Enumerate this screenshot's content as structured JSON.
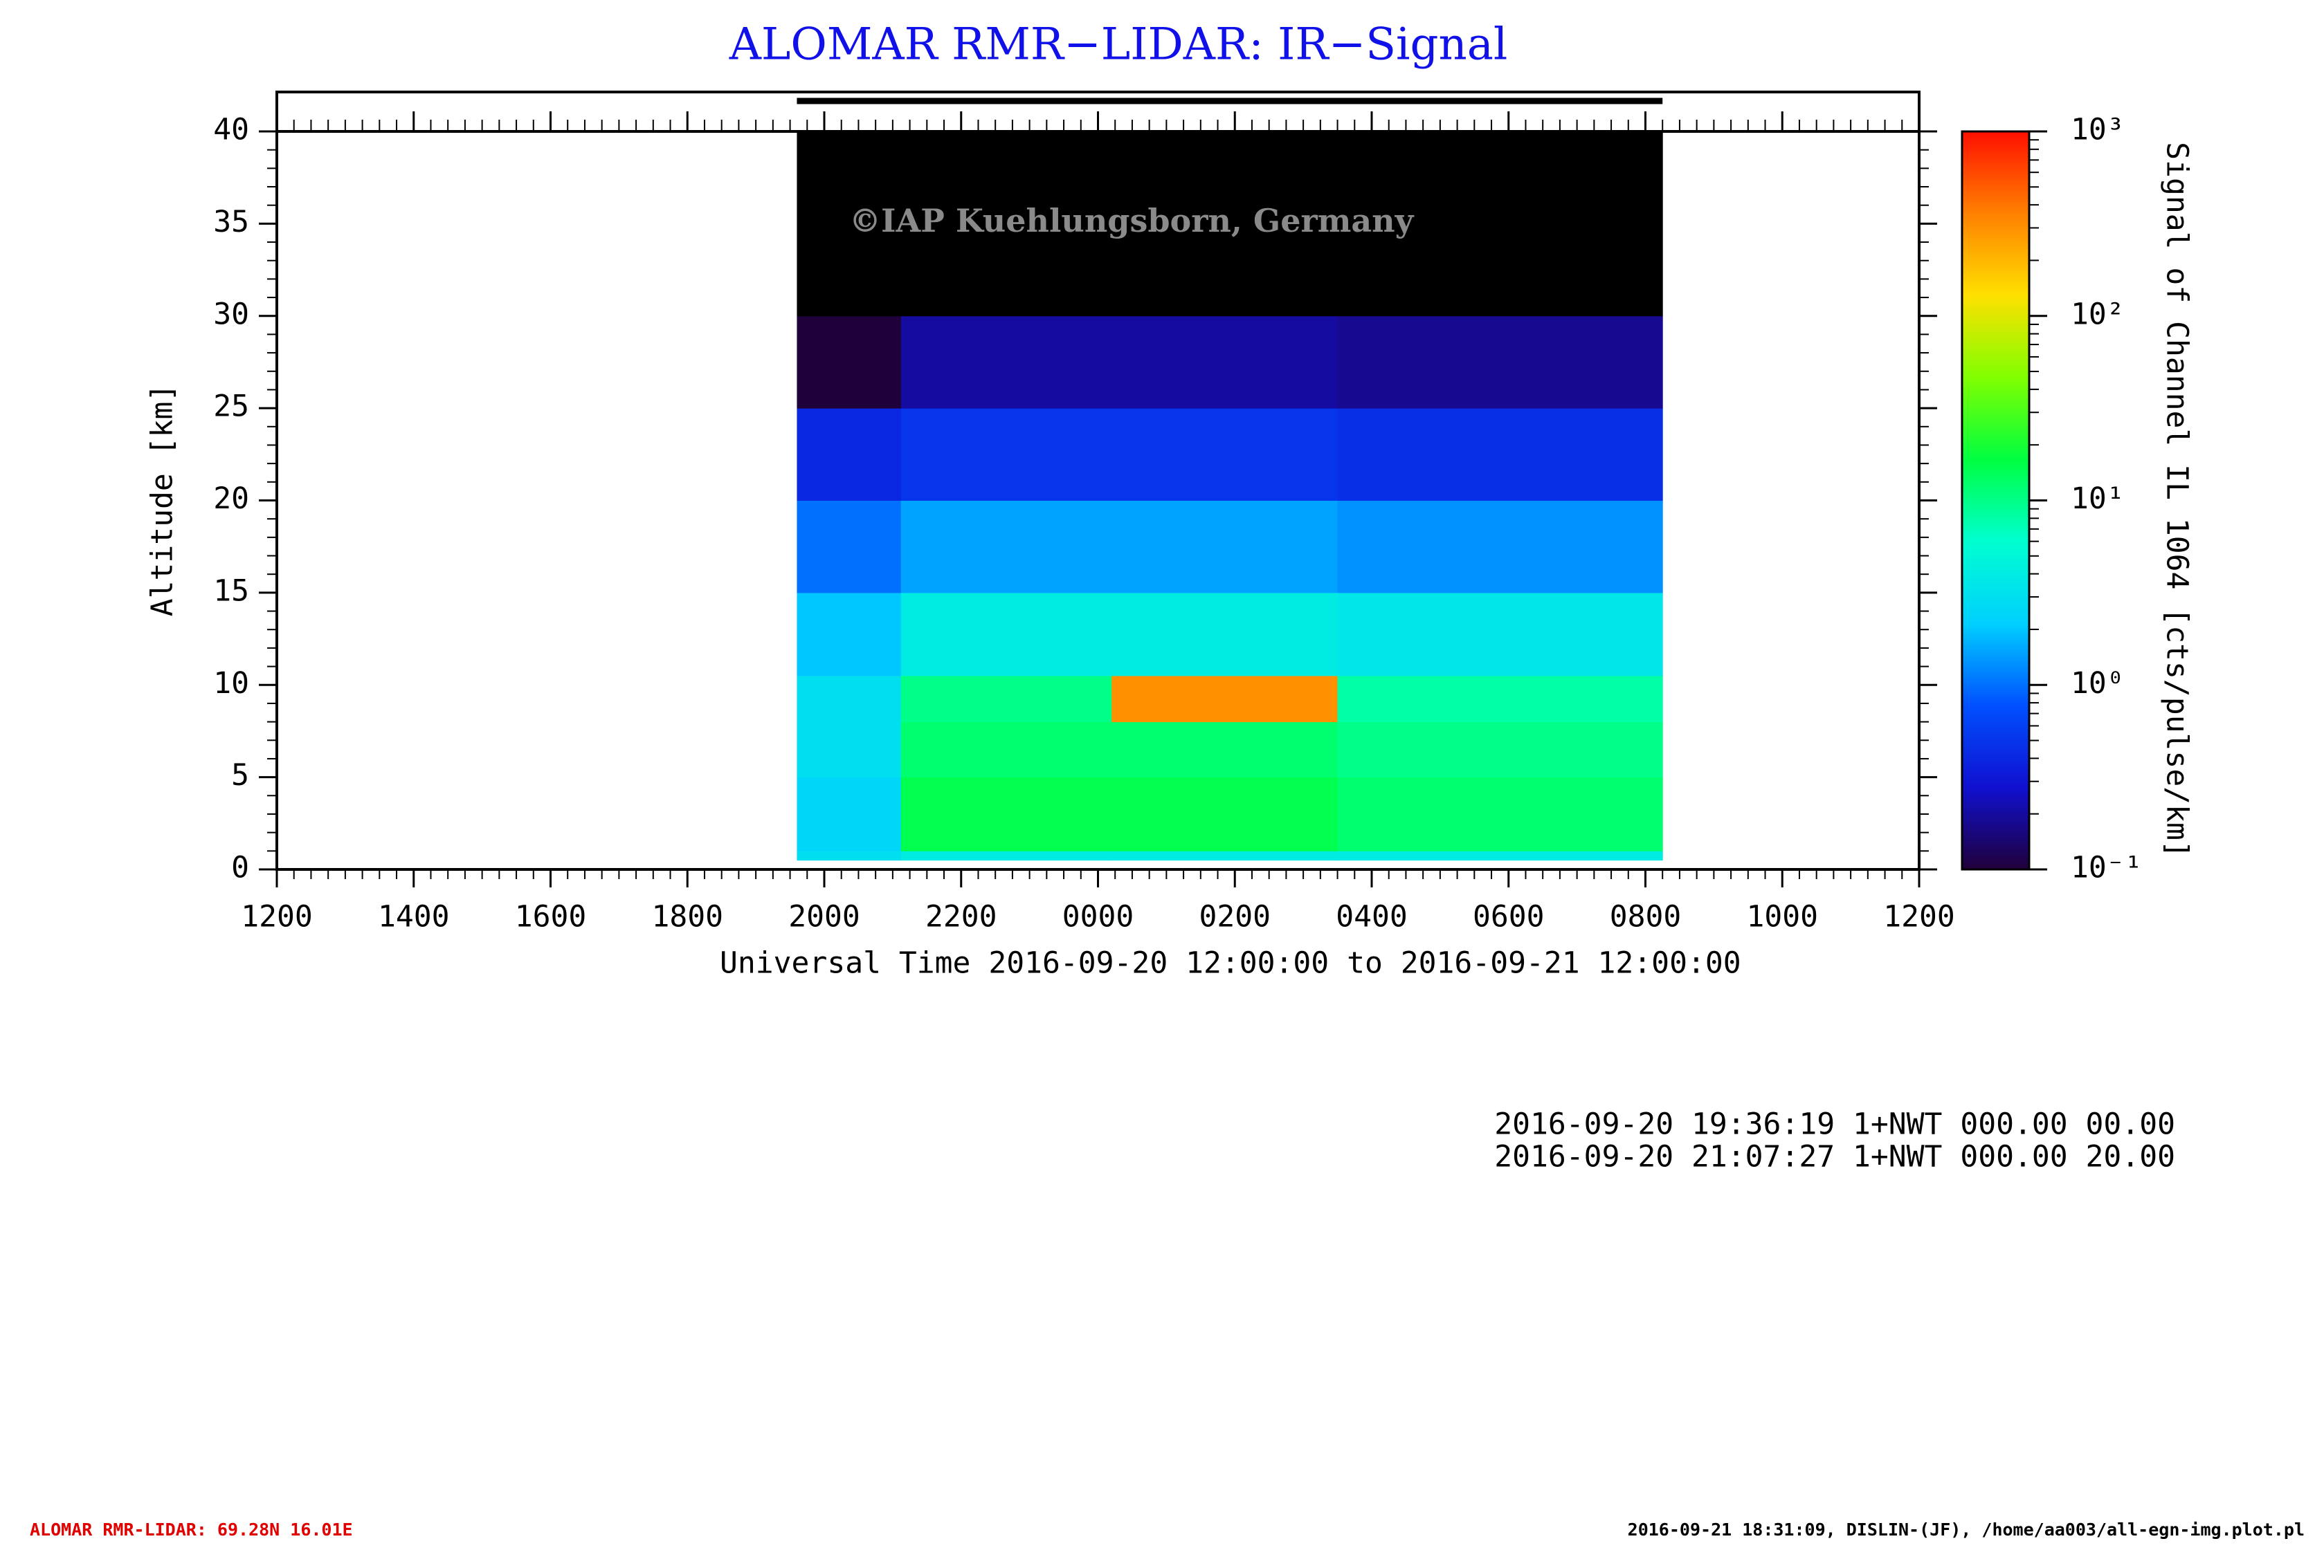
{
  "chart_data": {
    "type": "heatmap",
    "title": "ALOMAR RMR−LIDAR: IR−Signal",
    "watermark": "©IAP Kuehlungsborn, Germany",
    "xlabel": "Universal Time 2016-09-20 12:00:00 to 2016-09-21 12:00:00",
    "ylabel": "Altitude [km]",
    "colorbar_label": "Signal of Channel IL 1064 [cts/pulse/km]",
    "x_edges": [
      7.6,
      9.12,
      12.2,
      15.5,
      20.25
    ],
    "y_edges": [
      0.5,
      1,
      5,
      8,
      10.5,
      15,
      20,
      25,
      30,
      40
    ],
    "values": [
      [
        3,
        4,
        4,
        4
      ],
      [
        2.5,
        15,
        15,
        12
      ],
      [
        3,
        12,
        12,
        10
      ],
      [
        3,
        10,
        300,
        8
      ],
      [
        2,
        4,
        4,
        3.5
      ],
      [
        1,
        1.5,
        1.5,
        1.3
      ],
      [
        0.4,
        0.5,
        0.5,
        0.45
      ],
      [
        0.1,
        0.2,
        0.2,
        0.18
      ],
      [
        0.05,
        0.05,
        0.05,
        0.05
      ]
    ],
    "xlim": [
      0,
      24
    ],
    "xticks": [
      {
        "value": 0,
        "label": "1200"
      },
      {
        "value": 2,
        "label": "1400"
      },
      {
        "value": 4,
        "label": "1600"
      },
      {
        "value": 6,
        "label": "1800"
      },
      {
        "value": 8,
        "label": "2000"
      },
      {
        "value": 10,
        "label": "2200"
      },
      {
        "value": 12,
        "label": "0000"
      },
      {
        "value": 14,
        "label": "0200"
      },
      {
        "value": 16,
        "label": "0400"
      },
      {
        "value": 18,
        "label": "0600"
      },
      {
        "value": 20,
        "label": "0800"
      },
      {
        "value": 22,
        "label": "1000"
      },
      {
        "value": 24,
        "label": "1200"
      }
    ],
    "ylim": [
      0,
      40
    ],
    "yticks": [
      0,
      5,
      10,
      15,
      20,
      25,
      30,
      35,
      40
    ],
    "clim": [
      0.1,
      1000
    ],
    "color_scale": "log",
    "cticks": [
      {
        "value": 0.1,
        "label": "10⁻¹"
      },
      {
        "value": 1,
        "label": "10⁰"
      },
      {
        "value": 10,
        "label": "10¹"
      },
      {
        "value": 100,
        "label": "10²"
      },
      {
        "value": 1000,
        "label": "10³"
      }
    ],
    "colormap": [
      "#20003a",
      "#1010d0",
      "#0050ff",
      "#00d0ff",
      "#00ffd0",
      "#00ff40",
      "#80ff00",
      "#ffe000",
      "#ff8000",
      "#ff1000"
    ],
    "under_color": "#000000",
    "measurements": [
      "2016-09-20 19:36:19 1+NWT 000.00 00.00",
      "2016-09-20 21:07:27 1+NWT 000.00 20.00"
    ]
  },
  "footer": {
    "left": "ALOMAR RMR-LIDAR: 69.28N 16.01E",
    "right": "2016-09-21 18:31:09, DISLIN-(JF), /home/aa003/all-egn-img.plot.pl"
  }
}
